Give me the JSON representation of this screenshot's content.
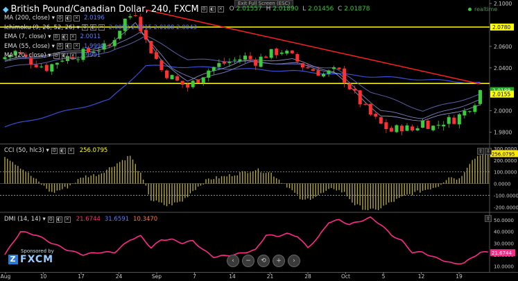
{
  "header": {
    "title": "British Pound/Canadian Dollar, 240, FXCM",
    "open_label": "O",
    "open": "2.01557",
    "high_label": "H",
    "high": "2.01890",
    "low_label": "L",
    "low": "2.01456",
    "close_label": "C",
    "close": "2.01878"
  },
  "exit_label": "Exit Full Screen (ESC)",
  "realtime_label": "realtime",
  "indicators": [
    {
      "label": "MA (200, close) ▾",
      "value": "2.0196",
      "color": "#5a7dff"
    },
    {
      "label": "Ichimoku (9, 26, 52, 26) ▾",
      "value": "2.0052  2.0015  2.0188  2.0043",
      "color": "#5a7dff"
    },
    {
      "label": "EMA (7, close) ▾",
      "value": "2.0011",
      "color": "#5a7dff"
    },
    {
      "label": "EMA (55, close) ▾",
      "value": "1.9990",
      "color": "#5a7dff"
    },
    {
      "label": "MA (20, close) ▾",
      "value": "1.9991",
      "color": "#5a7dff"
    }
  ],
  "cci_label": "CCI (50, hlc3) ▾",
  "cci_value": "256.0795",
  "dmi_label": "DMI (14, 14) ▾",
  "dmi_values": [
    "21.6744",
    "31.6591",
    "10.3470"
  ],
  "sponsor": {
    "line1": "Sponsored by",
    "line2": "FXCM",
    "logo": "Z"
  },
  "nav_buttons": [
    "‹",
    "−",
    "⟲",
    "+",
    "›"
  ],
  "colors": {
    "bull": "#3ccc3c",
    "bear": "#ff3030",
    "accent": "#ffff00",
    "trend": "#ff2020",
    "dmi": "#ff2a88"
  },
  "chart_data": [
    {
      "type": "candlestick",
      "title": "British Pound/Canadian Dollar, 240, FXCM",
      "x_ticks": [
        "Aug",
        "10",
        "17",
        "24",
        "Sep",
        "7",
        "14",
        "21",
        "28",
        "Oct",
        "5",
        "12",
        "19"
      ],
      "y_ticks": [
        "2.1000",
        "2.0600",
        "2.0400",
        "2.0200",
        "2.0000",
        "1.9800"
      ],
      "ylim": [
        1.97,
        2.1
      ],
      "close_path": [
        [
          0,
          2.05
        ],
        [
          2,
          2.055
        ],
        [
          5,
          2.046
        ],
        [
          8,
          2.04
        ],
        [
          11,
          2.049
        ],
        [
          14,
          2.052
        ],
        [
          17,
          2.057
        ],
        [
          20,
          2.06
        ],
        [
          23,
          2.085
        ],
        [
          25,
          2.092
        ],
        [
          27,
          2.065
        ],
        [
          29,
          2.048
        ],
        [
          30,
          2.038
        ],
        [
          33,
          2.027
        ],
        [
          35,
          2.022
        ],
        [
          37,
          2.03
        ],
        [
          39,
          2.038
        ],
        [
          41,
          2.043
        ],
        [
          44,
          2.047
        ],
        [
          46,
          2.05
        ],
        [
          48,
          2.046
        ],
        [
          50,
          2.052
        ],
        [
          53,
          2.056
        ],
        [
          55,
          2.05
        ],
        [
          57,
          2.042
        ],
        [
          59,
          2.038
        ],
        [
          61,
          2.034
        ],
        [
          63,
          2.037
        ],
        [
          64,
          2.036
        ],
        [
          66,
          2.022
        ],
        [
          68,
          2.008
        ],
        [
          70,
          1.996
        ],
        [
          72,
          1.987
        ],
        [
          74,
          1.981
        ],
        [
          76,
          1.985
        ],
        [
          78,
          1.982
        ],
        [
          80,
          1.99
        ],
        [
          82,
          1.985
        ],
        [
          84,
          1.99
        ],
        [
          86,
          1.992
        ],
        [
          88,
          1.999
        ],
        [
          90,
          2.009
        ],
        [
          91,
          2.019
        ]
      ],
      "ma200_path": [
        [
          0,
          1.985
        ],
        [
          20,
          2.01
        ],
        [
          27,
          2.042
        ],
        [
          40,
          2.04
        ],
        [
          55,
          2.037
        ],
        [
          70,
          2.032
        ],
        [
          91,
          2.026
        ]
      ],
      "ema55_path": [
        [
          0,
          2.04
        ],
        [
          20,
          2.054
        ],
        [
          27,
          2.07
        ],
        [
          35,
          2.048
        ],
        [
          50,
          2.045
        ],
        [
          63,
          2.04
        ],
        [
          70,
          2.018
        ],
        [
          80,
          2.0
        ],
        [
          91,
          2.015
        ]
      ],
      "ema7_path": [
        [
          0,
          2.047
        ],
        [
          20,
          2.06
        ],
        [
          25,
          2.083
        ],
        [
          30,
          2.046
        ],
        [
          35,
          2.028
        ],
        [
          45,
          2.046
        ],
        [
          55,
          2.048
        ],
        [
          63,
          2.036
        ],
        [
          72,
          1.995
        ],
        [
          80,
          1.991
        ],
        [
          91,
          2.005
        ]
      ],
      "ma20_path": [
        [
          0,
          2.046
        ],
        [
          20,
          2.058
        ],
        [
          26,
          2.074
        ],
        [
          32,
          2.04
        ],
        [
          37,
          2.028
        ],
        [
          47,
          2.045
        ],
        [
          56,
          2.044
        ],
        [
          64,
          2.034
        ],
        [
          72,
          2.0
        ],
        [
          80,
          1.993
        ],
        [
          91,
          2.01
        ]
      ],
      "resistance_high": 2.078,
      "support_line": 2.0255,
      "trendline": [
        [
          27,
          2.094
        ],
        [
          91,
          2.025
        ]
      ],
      "price_labels": [
        "2.0780",
        "2.0188",
        "2.0155"
      ]
    },
    {
      "type": "bar",
      "title": "CCI (50, hlc3)",
      "y_ticks": [
        "300.0000",
        "200.0000",
        "100.0000",
        "0.0000",
        "-100.0000",
        "-200.0000"
      ],
      "ylim": [
        -240,
        330
      ],
      "levels": [
        100,
        -100
      ],
      "last_value": 256.0795,
      "path": [
        [
          0,
          240
        ],
        [
          3,
          140
        ],
        [
          6,
          30
        ],
        [
          9,
          -80
        ],
        [
          12,
          -30
        ],
        [
          15,
          60
        ],
        [
          18,
          80
        ],
        [
          21,
          160
        ],
        [
          24,
          240
        ],
        [
          26,
          80
        ],
        [
          28,
          -140
        ],
        [
          31,
          -190
        ],
        [
          34,
          -150
        ],
        [
          36,
          -60
        ],
        [
          39,
          40
        ],
        [
          42,
          60
        ],
        [
          45,
          90
        ],
        [
          48,
          120
        ],
        [
          51,
          90
        ],
        [
          54,
          -20
        ],
        [
          57,
          -150
        ],
        [
          60,
          -100
        ],
        [
          63,
          -40
        ],
        [
          65,
          -80
        ],
        [
          67,
          -180
        ],
        [
          69,
          -220
        ],
        [
          71,
          -230
        ],
        [
          74,
          -160
        ],
        [
          77,
          -100
        ],
        [
          80,
          -60
        ],
        [
          83,
          -20
        ],
        [
          85,
          60
        ],
        [
          87,
          40
        ],
        [
          89,
          180
        ],
        [
          91,
          256
        ]
      ]
    },
    {
      "type": "line",
      "title": "DMI (14, 14)",
      "y_ticks": [
        "50.0000",
        "40.0000",
        "30.0000",
        "20.0000",
        "10.0000"
      ],
      "ylim": [
        5,
        56
      ],
      "series_values": [
        21.6744,
        31.6591,
        10.347
      ],
      "path": [
        [
          0,
          20
        ],
        [
          3,
          40
        ],
        [
          6,
          37
        ],
        [
          9,
          30
        ],
        [
          12,
          24
        ],
        [
          15,
          20
        ],
        [
          18,
          22
        ],
        [
          21,
          22
        ],
        [
          24,
          33
        ],
        [
          26,
          36
        ],
        [
          28,
          26
        ],
        [
          30,
          33
        ],
        [
          32,
          33
        ],
        [
          34,
          30
        ],
        [
          36,
          32
        ],
        [
          38,
          24
        ],
        [
          40,
          18
        ],
        [
          42,
          19
        ],
        [
          44,
          20
        ],
        [
          46,
          22
        ],
        [
          48,
          24
        ],
        [
          50,
          37
        ],
        [
          52,
          36
        ],
        [
          54,
          38
        ],
        [
          56,
          36
        ],
        [
          58,
          26
        ],
        [
          60,
          35
        ],
        [
          62,
          48
        ],
        [
          64,
          50
        ],
        [
          66,
          46
        ],
        [
          68,
          49
        ],
        [
          70,
          52
        ],
        [
          72,
          46
        ],
        [
          74,
          37
        ],
        [
          76,
          32
        ],
        [
          78,
          22
        ],
        [
          80,
          22
        ],
        [
          82,
          18
        ],
        [
          84,
          15
        ],
        [
          86,
          12
        ],
        [
          88,
          13
        ],
        [
          91,
          22
        ]
      ]
    }
  ]
}
